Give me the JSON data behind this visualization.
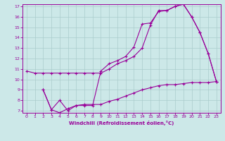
{
  "title": "",
  "xlabel": "Windchill (Refroidissement éolien,°C)",
  "ylabel": "",
  "xlim": [
    -0.5,
    23.5
  ],
  "ylim": [
    6.8,
    17.2
  ],
  "yticks": [
    7,
    8,
    9,
    10,
    11,
    12,
    13,
    14,
    15,
    16,
    17
  ],
  "xticks": [
    0,
    1,
    2,
    3,
    4,
    5,
    6,
    7,
    8,
    9,
    10,
    11,
    12,
    13,
    14,
    15,
    16,
    17,
    18,
    19,
    20,
    21,
    22,
    23
  ],
  "bg_color": "#cce8e8",
  "grid_color": "#aacccc",
  "line_color": "#990099",
  "line1_x": [
    0,
    1,
    2,
    3,
    4,
    5,
    6,
    7,
    8,
    9,
    10,
    11,
    12,
    13,
    14,
    15,
    16,
    17,
    18,
    19,
    20,
    21,
    22,
    23
  ],
  "line1_y": [
    10.8,
    10.6,
    10.6,
    10.6,
    10.6,
    10.6,
    10.6,
    10.6,
    10.6,
    10.6,
    11.0,
    11.5,
    11.8,
    12.2,
    13.0,
    15.2,
    16.6,
    16.6,
    17.0,
    17.2,
    16.0,
    14.5,
    12.5,
    9.8
  ],
  "line2_x": [
    2,
    3,
    4,
    5,
    6,
    7,
    8,
    9,
    10,
    11,
    12,
    13,
    14,
    15,
    16,
    17,
    18,
    19,
    20,
    21,
    22,
    23
  ],
  "line2_y": [
    9.0,
    7.1,
    8.0,
    7.0,
    7.5,
    7.5,
    7.5,
    10.8,
    11.5,
    11.8,
    12.2,
    13.1,
    15.3,
    15.4,
    16.5,
    16.6,
    17.0,
    17.2,
    16.0,
    14.5,
    12.5,
    9.8
  ],
  "line3_x": [
    2,
    3,
    4,
    5,
    6,
    7,
    8,
    9,
    10,
    11,
    12,
    13,
    14,
    15,
    16,
    17,
    18,
    19,
    20,
    21,
    22,
    23
  ],
  "line3_y": [
    9.0,
    7.1,
    6.8,
    7.2,
    7.5,
    7.6,
    7.6,
    7.6,
    7.9,
    8.1,
    8.4,
    8.7,
    9.0,
    9.2,
    9.4,
    9.5,
    9.5,
    9.6,
    9.7,
    9.7,
    9.7,
    9.8
  ]
}
